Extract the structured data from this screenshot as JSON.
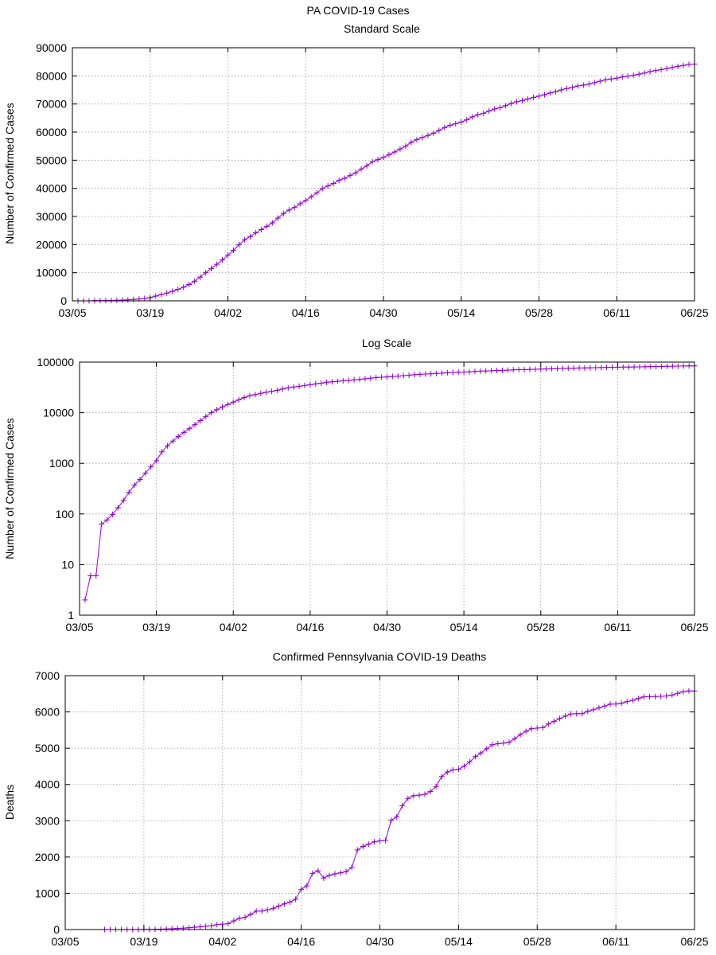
{
  "figure": {
    "title": "PA COVID-19 Cases",
    "series_color": "#9400d3"
  },
  "chart_data": [
    {
      "type": "line",
      "title": "Standard Scale",
      "xlabel": "",
      "ylabel": "Number of Confirmed Cases",
      "x_ticks": [
        "03/05",
        "03/19",
        "04/02",
        "04/16",
        "04/30",
        "05/14",
        "05/28",
        "06/11",
        "06/25"
      ],
      "xlim": [
        "03/05",
        "06/25"
      ],
      "ylim": [
        0,
        90000
      ],
      "y_ticks": [
        0,
        10000,
        20000,
        30000,
        40000,
        50000,
        60000,
        70000,
        80000,
        90000
      ],
      "yscale": "linear",
      "grid": true,
      "legend": "none",
      "marker": "+",
      "series": [
        {
          "x": [
            "03/06",
            "03/07",
            "03/08",
            "03/09",
            "03/10",
            "03/11",
            "03/12",
            "03/13",
            "03/14",
            "03/15",
            "03/16",
            "03/17",
            "03/18",
            "03/19",
            "03/20",
            "03/21",
            "03/22",
            "03/23",
            "03/24",
            "03/25",
            "03/26",
            "03/27",
            "03/28",
            "03/29",
            "03/30",
            "03/31",
            "04/01",
            "04/02",
            "04/03",
            "04/04",
            "04/05",
            "04/06",
            "04/07",
            "04/08",
            "04/09",
            "04/10",
            "04/11",
            "04/12",
            "04/13",
            "04/14",
            "04/15",
            "04/16",
            "04/17",
            "04/18",
            "04/19",
            "04/20",
            "04/21",
            "04/22",
            "04/23",
            "04/24",
            "04/25",
            "04/26",
            "04/27",
            "04/28",
            "04/29",
            "04/30",
            "05/01",
            "05/02",
            "05/03",
            "05/04",
            "05/05",
            "05/06",
            "05/07",
            "05/08",
            "05/09",
            "05/10",
            "05/11",
            "05/12",
            "05/13",
            "05/14",
            "05/15",
            "05/16",
            "05/17",
            "05/18",
            "05/19",
            "05/20",
            "05/21",
            "05/22",
            "05/23",
            "05/24",
            "05/25",
            "05/26",
            "05/27",
            "05/28",
            "05/29",
            "05/30",
            "05/31",
            "06/01",
            "06/02",
            "06/03",
            "06/04",
            "06/05",
            "06/06",
            "06/07",
            "06/08",
            "06/09",
            "06/10",
            "06/11",
            "06/12",
            "06/13",
            "06/14",
            "06/15",
            "06/16",
            "06/17",
            "06/18",
            "06/19",
            "06/20",
            "06/21",
            "06/22",
            "06/23",
            "06/24",
            "06/25"
          ],
          "y": [
            2,
            6,
            6,
            63,
            76,
            98,
            133,
            185,
            268,
            371,
            479,
            644,
            851,
            1127,
            1687,
            2218,
            2751,
            3394,
            4087,
            4843,
            5805,
            6980,
            8420,
            10017,
            11510,
            12980,
            14559,
            16239,
            17979,
            19979,
            21719,
            22833,
            24199,
            25345,
            26490,
            27735,
            29441,
            31069,
            32284,
            33232,
            34528,
            35684,
            37053,
            38379,
            39958,
            40878,
            41731,
            42845,
            43558,
            44600,
            45500,
            46880,
            48000,
            49500,
            50200,
            51000,
            52000,
            52915,
            54000,
            55000,
            56400,
            57300,
            58100,
            58800,
            59600,
            60600,
            61600,
            62400,
            63000,
            63600,
            64400,
            65400,
            66200,
            66700,
            67500,
            68200,
            68700,
            69400,
            70200,
            70800,
            71200,
            71800,
            72300,
            72800,
            73300,
            73900,
            74400,
            75000,
            75500,
            75900,
            76400,
            76700,
            77100,
            77600,
            78100,
            78600,
            78900,
            79200,
            79600,
            79900,
            80200,
            80600,
            81000,
            81500,
            81900,
            82200,
            82600,
            83000,
            83400,
            83700,
            84100,
            84200
          ]
        }
      ]
    },
    {
      "type": "line",
      "title": "Log Scale",
      "xlabel": "",
      "ylabel": "Number of Confirmed Cases",
      "x_ticks": [
        "03/05",
        "03/19",
        "04/02",
        "04/16",
        "04/30",
        "05/14",
        "05/28",
        "06/11",
        "06/25"
      ],
      "xlim": [
        "03/05",
        "06/25"
      ],
      "ylim": [
        1,
        100000
      ],
      "y_ticks": [
        1,
        10,
        100,
        1000,
        10000,
        100000
      ],
      "yscale": "log",
      "grid": true,
      "legend": "none",
      "marker": "+",
      "series": [
        {
          "x": [
            "03/06",
            "03/07",
            "03/08",
            "03/09",
            "03/10",
            "03/11",
            "03/12",
            "03/13",
            "03/14",
            "03/15",
            "03/16",
            "03/17",
            "03/18",
            "03/19",
            "03/20",
            "03/21",
            "03/22",
            "03/23",
            "03/24",
            "03/25",
            "03/26",
            "03/27",
            "03/28",
            "03/29",
            "03/30",
            "03/31",
            "04/01",
            "04/02",
            "04/03",
            "04/04",
            "04/05",
            "04/06",
            "04/07",
            "04/08",
            "04/09",
            "04/10",
            "04/11",
            "04/12",
            "04/13",
            "04/14",
            "04/15",
            "04/16",
            "04/17",
            "04/18",
            "04/19",
            "04/20",
            "04/21",
            "04/22",
            "04/23",
            "04/24",
            "04/25",
            "04/26",
            "04/27",
            "04/28",
            "04/29",
            "04/30",
            "05/01",
            "05/02",
            "05/03",
            "05/04",
            "05/05",
            "05/06",
            "05/07",
            "05/08",
            "05/09",
            "05/10",
            "05/11",
            "05/12",
            "05/13",
            "05/14",
            "05/15",
            "05/16",
            "05/17",
            "05/18",
            "05/19",
            "05/20",
            "05/21",
            "05/22",
            "05/23",
            "05/24",
            "05/25",
            "05/26",
            "05/27",
            "05/28",
            "05/29",
            "05/30",
            "05/31",
            "06/01",
            "06/02",
            "06/03",
            "06/04",
            "06/05",
            "06/06",
            "06/07",
            "06/08",
            "06/09",
            "06/10",
            "06/11",
            "06/12",
            "06/13",
            "06/14",
            "06/15",
            "06/16",
            "06/17",
            "06/18",
            "06/19",
            "06/20",
            "06/21",
            "06/22",
            "06/23",
            "06/24",
            "06/25"
          ],
          "y": [
            2,
            6,
            6,
            63,
            76,
            98,
            133,
            185,
            268,
            371,
            479,
            644,
            851,
            1127,
            1687,
            2218,
            2751,
            3394,
            4087,
            4843,
            5805,
            6980,
            8420,
            10017,
            11510,
            12980,
            14559,
            16239,
            17979,
            19979,
            21719,
            22833,
            24199,
            25345,
            26490,
            27735,
            29441,
            31069,
            32284,
            33232,
            34528,
            35684,
            37053,
            38379,
            39958,
            40878,
            41731,
            42845,
            43558,
            44600,
            45500,
            46880,
            48000,
            49500,
            50200,
            51000,
            52000,
            52915,
            54000,
            55000,
            56400,
            57300,
            58100,
            58800,
            59600,
            60600,
            61600,
            62400,
            63000,
            63600,
            64400,
            65400,
            66200,
            66700,
            67500,
            68200,
            68700,
            69400,
            70200,
            70800,
            71200,
            71800,
            72300,
            72800,
            73300,
            73900,
            74400,
            75000,
            75500,
            75900,
            76400,
            76700,
            77100,
            77600,
            78100,
            78600,
            78900,
            79200,
            79600,
            79900,
            80200,
            80600,
            81000,
            81500,
            81900,
            82200,
            82600,
            83000,
            83400,
            83700,
            84100,
            84200
          ]
        }
      ]
    },
    {
      "type": "line",
      "title": "Confirmed Pennsylvania COVID-19 Deaths",
      "xlabel": "",
      "ylabel": "Deaths",
      "x_ticks": [
        "03/05",
        "03/19",
        "04/02",
        "04/16",
        "04/30",
        "05/14",
        "05/28",
        "06/11",
        "06/25"
      ],
      "xlim": [
        "03/05",
        "06/25"
      ],
      "ylim": [
        0,
        7000
      ],
      "y_ticks": [
        0,
        1000,
        2000,
        3000,
        4000,
        5000,
        6000,
        7000
      ],
      "yscale": "linear",
      "grid": true,
      "legend": "none",
      "marker": "+",
      "series": [
        {
          "x": [
            "03/12",
            "03/13",
            "03/14",
            "03/15",
            "03/16",
            "03/17",
            "03/18",
            "03/19",
            "03/20",
            "03/21",
            "03/22",
            "03/23",
            "03/24",
            "03/25",
            "03/26",
            "03/27",
            "03/28",
            "03/29",
            "03/30",
            "03/31",
            "04/01",
            "04/02",
            "04/03",
            "04/04",
            "04/05",
            "04/06",
            "04/07",
            "04/08",
            "04/09",
            "04/10",
            "04/11",
            "04/12",
            "04/13",
            "04/14",
            "04/15",
            "04/16",
            "04/17",
            "04/18",
            "04/19",
            "04/20",
            "04/21",
            "04/22",
            "04/23",
            "04/24",
            "04/25",
            "04/26",
            "04/27",
            "04/28",
            "04/29",
            "04/30",
            "05/01",
            "05/02",
            "05/03",
            "05/04",
            "05/05",
            "05/06",
            "05/07",
            "05/08",
            "05/09",
            "05/10",
            "05/11",
            "05/12",
            "05/13",
            "05/14",
            "05/15",
            "05/16",
            "05/17",
            "05/18",
            "05/19",
            "05/20",
            "05/21",
            "05/22",
            "05/23",
            "05/24",
            "05/25",
            "05/26",
            "05/27",
            "05/28",
            "05/29",
            "05/30",
            "05/31",
            "06/01",
            "06/02",
            "06/03",
            "06/04",
            "06/05",
            "06/06",
            "06/07",
            "06/08",
            "06/09",
            "06/10",
            "06/11",
            "06/12",
            "06/13",
            "06/14",
            "06/15",
            "06/16",
            "06/17",
            "06/18",
            "06/19",
            "06/20",
            "06/21",
            "06/22",
            "06/23",
            "06/24",
            "06/25"
          ],
          "y": [
            0,
            0,
            0,
            0,
            0,
            0,
            1,
            2,
            2,
            5,
            10,
            15,
            22,
            34,
            38,
            49,
            63,
            74,
            90,
            102,
            136,
            150,
            162,
            240,
            310,
            338,
            416,
            507,
            510,
            542,
            584,
            647,
            707,
            757,
            836,
            1112,
            1204,
            1550,
            1622,
            1419,
            1492,
            1537,
            1564,
            1597,
            1712,
            2195,
            2292,
            2354,
            2418,
            2444,
            2458,
            3012,
            3106,
            3416,
            3616,
            3688,
            3707,
            3731,
            3806,
            3943,
            4218,
            4342,
            4403,
            4418,
            4505,
            4624,
            4767,
            4869,
            4984,
            5096,
            5124,
            5139,
            5164,
            5265,
            5373,
            5464,
            5537,
            5555,
            5567,
            5667,
            5742,
            5818,
            5886,
            5943,
            5953,
            5952,
            6014,
            6062,
            6113,
            6162,
            6215,
            6218,
            6243,
            6283,
            6319,
            6373,
            6417,
            6422,
            6425,
            6430,
            6441,
            6464,
            6512,
            6557,
            6579,
            6577
          ]
        }
      ]
    }
  ]
}
